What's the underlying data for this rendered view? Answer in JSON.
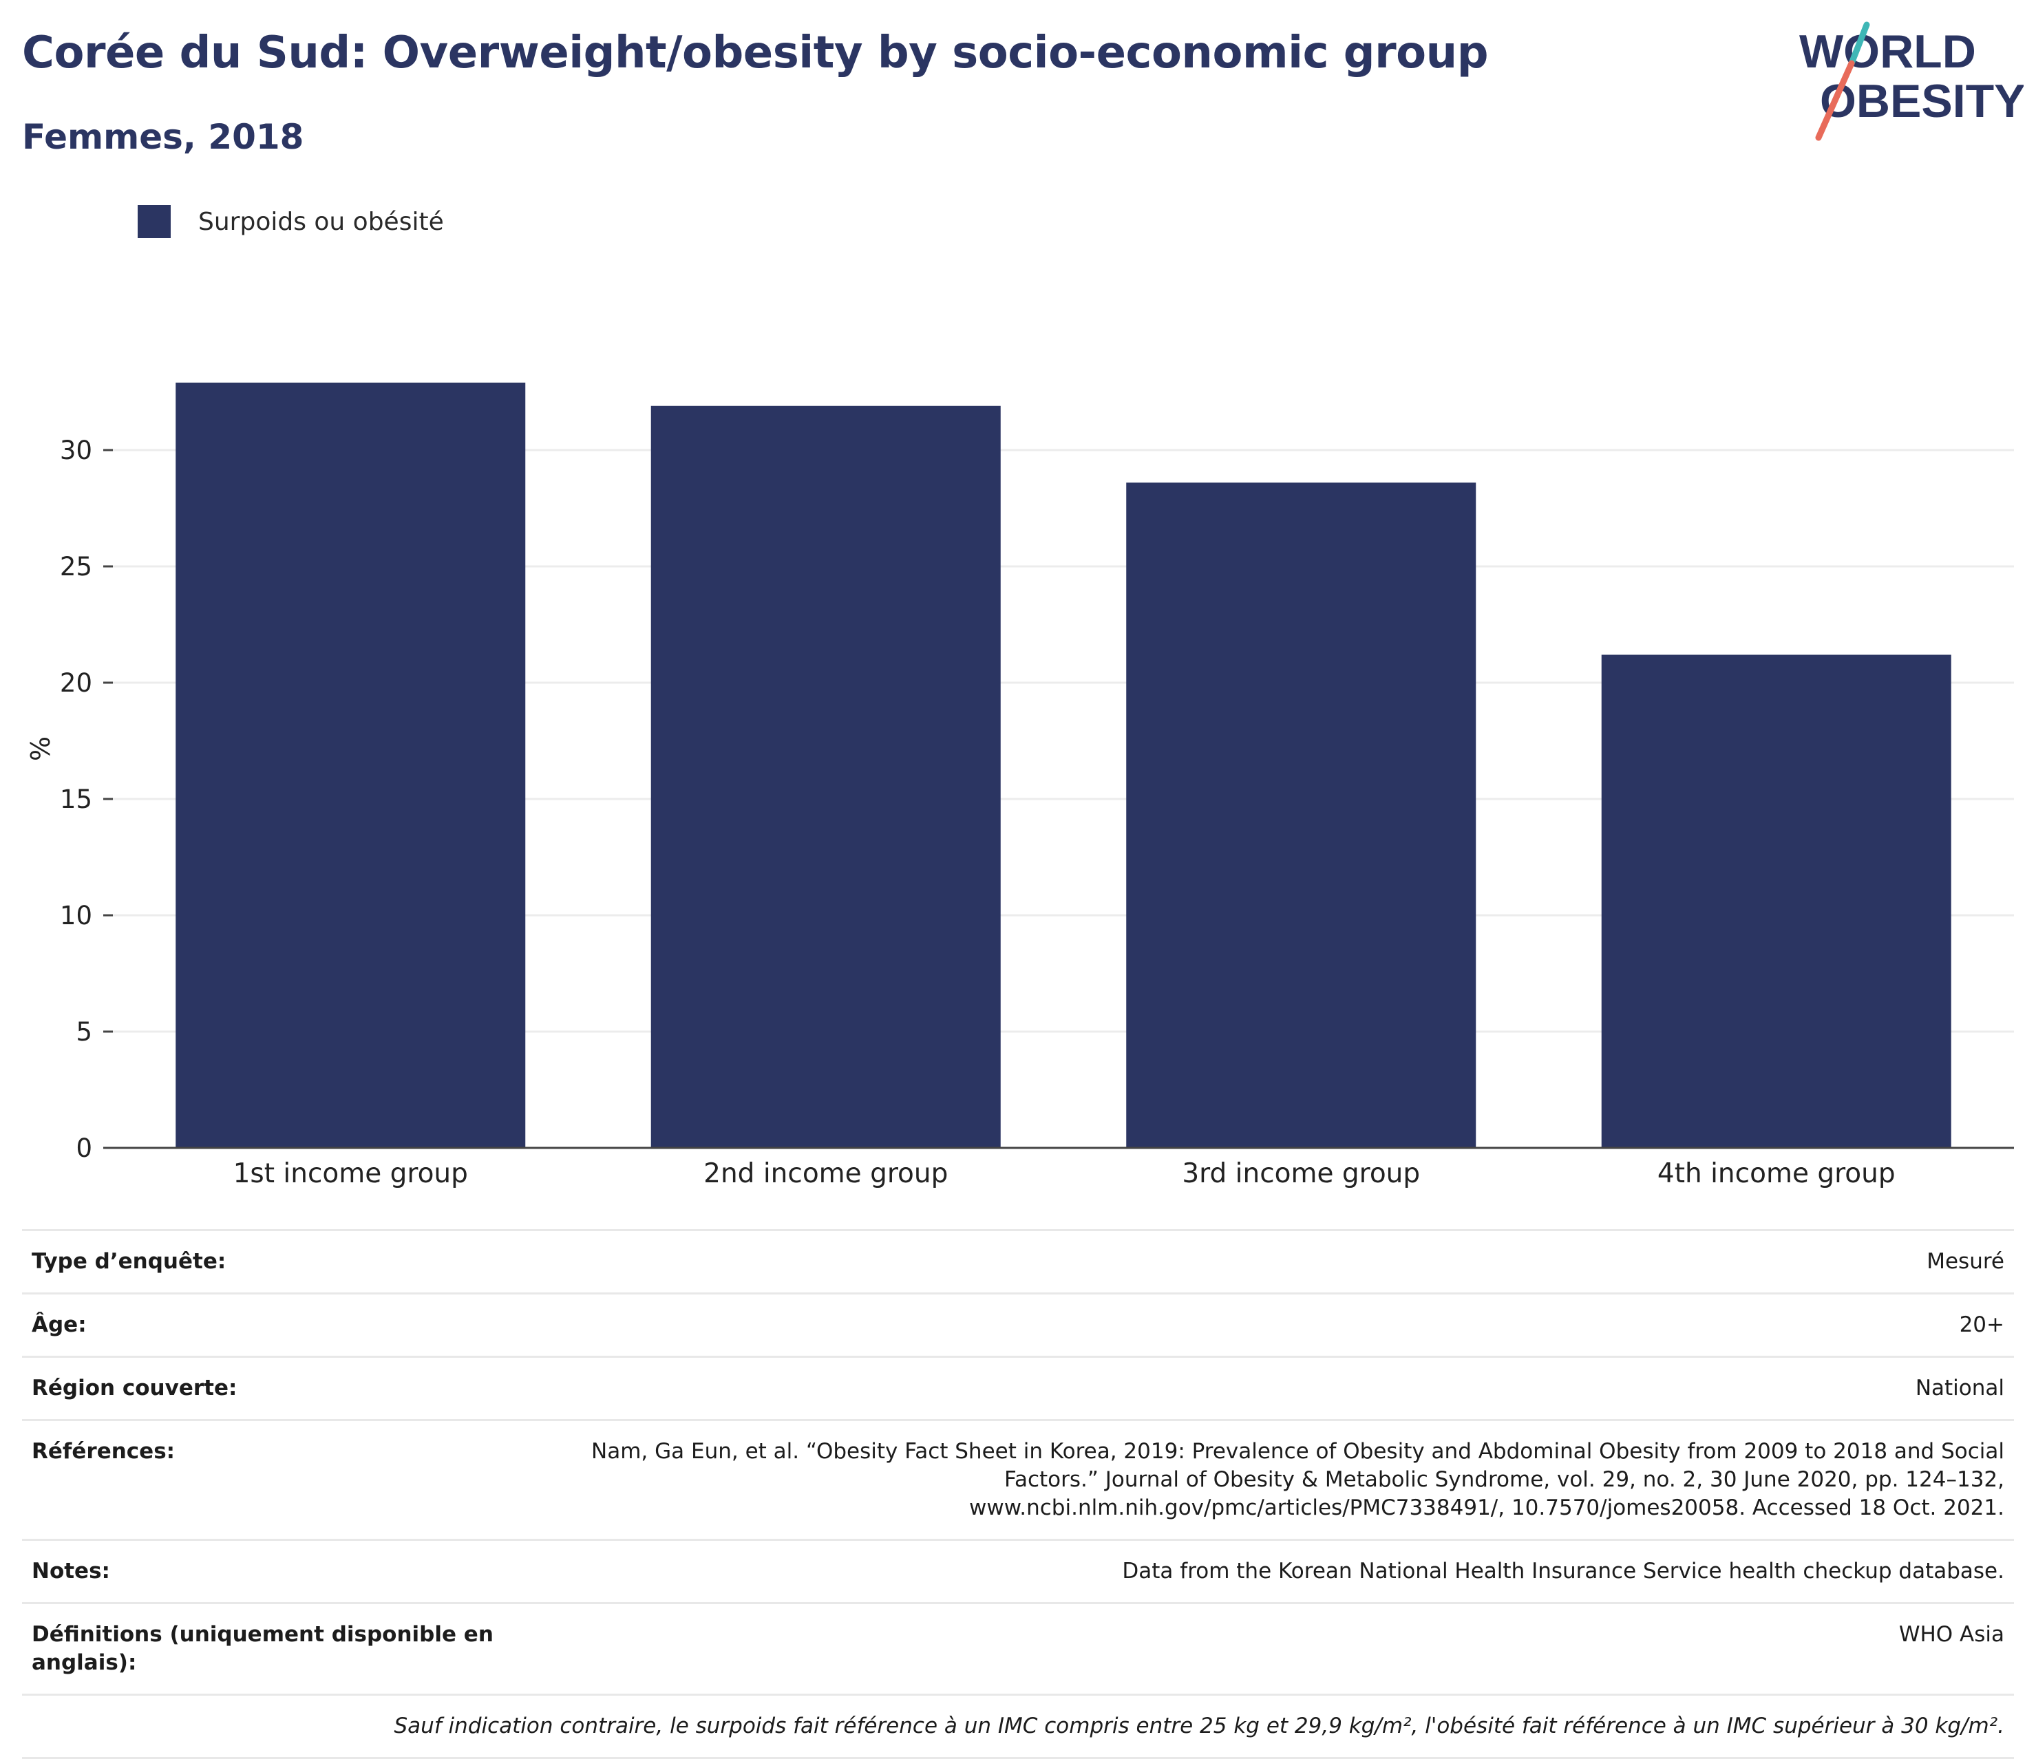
{
  "header": {
    "title": "Corée du Sud: Overweight/obesity by socio-economic group",
    "subtitle": "Femmes, 2018"
  },
  "logo": {
    "line1": "WORLD",
    "line2": "OBESITY"
  },
  "colors": {
    "bar": "#2b3562",
    "title": "#2b3562",
    "logo_text": "#2b3562",
    "logo_slash_red": "#e86b5a",
    "logo_slash_teal": "#3eb7b6"
  },
  "chart_data": {
    "type": "bar",
    "categories": [
      "1st income group",
      "2nd income group",
      "3rd income group",
      "4th income group"
    ],
    "series": [
      {
        "name": "Surpoids ou obésité",
        "values": [
          32.9,
          31.9,
          28.6,
          21.2
        ]
      }
    ],
    "ylabel": "%",
    "ylim": [
      0,
      35
    ],
    "yticks": [
      0,
      5,
      10,
      15,
      20,
      25,
      30
    ],
    "grid": true,
    "legend_position": "top-left"
  },
  "details": [
    {
      "label": "Type d’enquête:",
      "value": "Mesuré"
    },
    {
      "label": "Âge:",
      "value": "20+"
    },
    {
      "label": "Région couverte:",
      "value": "National"
    },
    {
      "label": "Références:",
      "value": "Nam, Ga Eun, et al. “Obesity Fact Sheet in Korea, 2019: Prevalence of Obesity and Abdominal Obesity from 2009 to 2018 and Social Factors.” Journal of Obesity & Metabolic Syndrome, vol. 29, no. 2, 30 June 2020, pp. 124–132, www.ncbi.nlm.nih.gov/pmc/articles/PMC7338491/, 10.7570/jomes20058. Accessed 18 Oct. 2021."
    },
    {
      "label": "Notes:",
      "value": "Data from the Korean National Health Insurance Service health checkup database."
    },
    {
      "label": "Définitions (uniquement disponible en anglais):",
      "value": "WHO Asia"
    }
  ],
  "footnote": "Sauf indication contraire, le surpoids fait référence à un IMC compris entre 25 kg et 29,9 kg/m², l'obésité fait référence à un IMC supérieur à 30 kg/m²."
}
